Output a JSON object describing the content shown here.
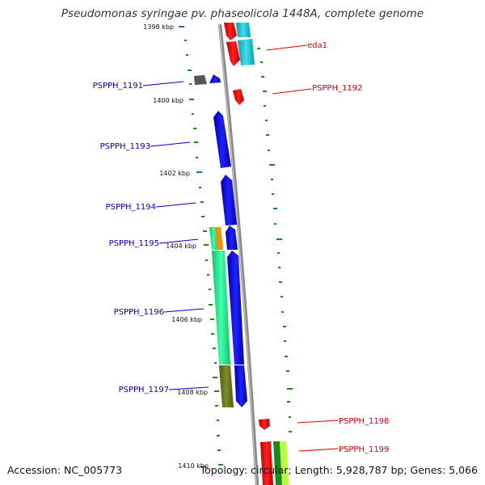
{
  "title": "Pseudomonas syringae pv. phaseolicola 1448A, complete genome",
  "accession": "Accession: NC_005773",
  "summary": "Topology: circular; Length: 5,928,787 bp; Genes: 5,066",
  "ruler": [
    {
      "label": "1398 kbp"
    },
    {
      "label": "1400 kbp"
    },
    {
      "label": "1402 kbp"
    },
    {
      "label": "1404 kbp"
    },
    {
      "label": "1406 kbp"
    },
    {
      "label": "1408 kbp"
    },
    {
      "label": "1410 kbp"
    }
  ],
  "genes_reverse": [
    {
      "name": "PSPPH_1191",
      "color": "#0000cc"
    },
    {
      "name": "PSPPH_1193",
      "color": "#0000cc"
    },
    {
      "name": "PSPPH_1194",
      "color": "#0000cc"
    },
    {
      "name": "PSPPH_1195",
      "color": "#0000cc"
    },
    {
      "name": "PSPPH_1196",
      "color": "#0000cc"
    },
    {
      "name": "PSPPH_1197",
      "color": "#0000cc"
    }
  ],
  "genes_forward": [
    {
      "name": "eda1",
      "color": "#dd0000"
    },
    {
      "name": "PSPPH_1192",
      "color": "#dd0000"
    },
    {
      "name": "PSPPH_1198",
      "color": "#dd0000"
    },
    {
      "name": "PSPPH_1199",
      "color": "#dd0000"
    }
  ],
  "colors": {
    "backbone": "#8a8a8a",
    "gc_dash": "#1a8a1a",
    "blue_feature": "#0000ee",
    "red_feature": "#ee1111",
    "cyan_feature": "#22c8d8",
    "green_feature": "#22ee99",
    "olive_feature": "#6b7a1a",
    "orange_feature": "#ff8c00",
    "gray_feature": "#555555"
  }
}
